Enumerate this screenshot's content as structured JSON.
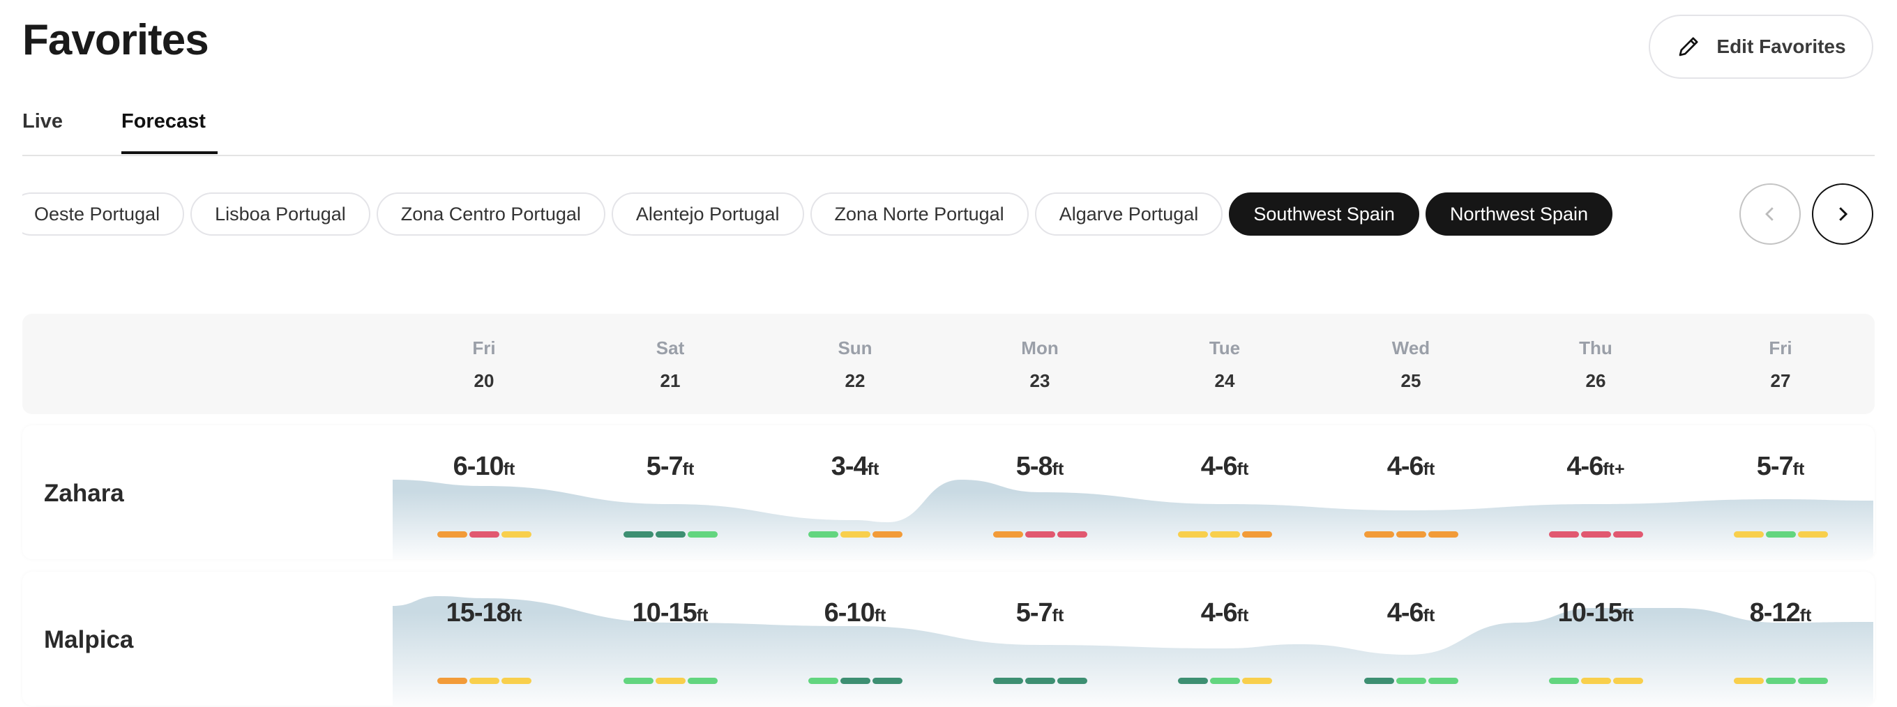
{
  "page": {
    "title": "Favorites",
    "edit_button": "Edit Favorites",
    "edit_icon": "pencil-icon"
  },
  "tabs": [
    {
      "label": "Live",
      "active": false
    },
    {
      "label": "Forecast",
      "active": true
    }
  ],
  "regions": [
    {
      "label": "Oeste Portugal",
      "selected": false
    },
    {
      "label": "Lisboa Portugal",
      "selected": false
    },
    {
      "label": "Zona Centro Portugal",
      "selected": false
    },
    {
      "label": "Alentejo Portugal",
      "selected": false
    },
    {
      "label": "Zona Norte Portugal",
      "selected": false
    },
    {
      "label": "Algarve Portugal",
      "selected": false
    },
    {
      "label": "Southwest Spain",
      "selected": true
    },
    {
      "label": "Northwest Spain",
      "selected": true
    }
  ],
  "nav": {
    "prev_icon": "chevron-left-icon",
    "prev_enabled": false,
    "next_icon": "chevron-right-icon",
    "next_enabled": true
  },
  "days": [
    {
      "name": "Fri",
      "date": "20"
    },
    {
      "name": "Sat",
      "date": "21"
    },
    {
      "name": "Sun",
      "date": "22"
    },
    {
      "name": "Mon",
      "date": "23"
    },
    {
      "name": "Tue",
      "date": "24"
    },
    {
      "name": "Wed",
      "date": "25"
    },
    {
      "name": "Thu",
      "date": "26"
    },
    {
      "name": "Fri",
      "date": "27"
    }
  ],
  "rating_colors": {
    "orange": "#f29b38",
    "red": "#e15870",
    "yellow": "#f8cf4c",
    "darkgreen": "#3d8f72",
    "green": "#62d57f"
  },
  "spots": [
    {
      "name": "Zahara",
      "forecast": [
        {
          "range": "6-10",
          "unit": "ft",
          "ratings": [
            "orange",
            "red",
            "yellow"
          ]
        },
        {
          "range": "5-7",
          "unit": "ft",
          "ratings": [
            "darkgreen",
            "darkgreen",
            "green"
          ]
        },
        {
          "range": "3-4",
          "unit": "ft",
          "ratings": [
            "green",
            "yellow",
            "orange"
          ]
        },
        {
          "range": "5-8",
          "unit": "ft",
          "ratings": [
            "orange",
            "red",
            "red"
          ]
        },
        {
          "range": "4-6",
          "unit": "ft",
          "ratings": [
            "yellow",
            "yellow",
            "orange"
          ]
        },
        {
          "range": "4-6",
          "unit": "ft",
          "ratings": [
            "orange",
            "orange",
            "orange"
          ]
        },
        {
          "range": "4-6",
          "unit": "ft+",
          "ratings": [
            "red",
            "red",
            "red"
          ]
        },
        {
          "range": "5-7",
          "unit": "ft",
          "ratings": [
            "yellow",
            "green",
            "yellow"
          ]
        }
      ]
    },
    {
      "name": "Malpica",
      "forecast": [
        {
          "range": "15-18",
          "unit": "ft",
          "ratings": [
            "orange",
            "yellow",
            "yellow"
          ]
        },
        {
          "range": "10-15",
          "unit": "ft",
          "ratings": [
            "green",
            "yellow",
            "green"
          ]
        },
        {
          "range": "6-10",
          "unit": "ft",
          "ratings": [
            "green",
            "darkgreen",
            "darkgreen"
          ]
        },
        {
          "range": "5-7",
          "unit": "ft",
          "ratings": [
            "darkgreen",
            "darkgreen",
            "darkgreen"
          ]
        },
        {
          "range": "4-6",
          "unit": "ft",
          "ratings": [
            "darkgreen",
            "green",
            "yellow"
          ]
        },
        {
          "range": "4-6",
          "unit": "ft",
          "ratings": [
            "darkgreen",
            "green",
            "green"
          ]
        },
        {
          "range": "10-15",
          "unit": "ft",
          "ratings": [
            "green",
            "yellow",
            "yellow"
          ]
        },
        {
          "range": "8-12",
          "unit": "ft",
          "ratings": [
            "yellow",
            "green",
            "green"
          ]
        }
      ]
    }
  ]
}
